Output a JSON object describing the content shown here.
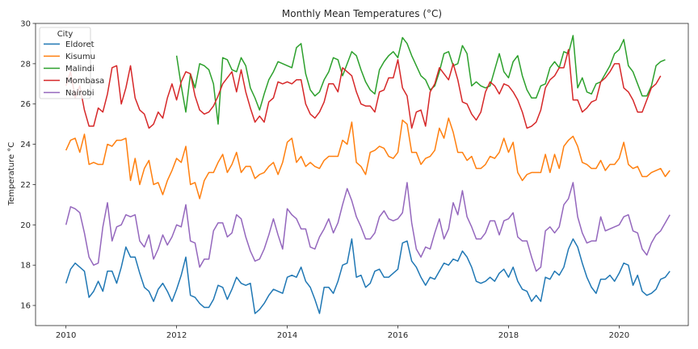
{
  "chart_data": {
    "type": "line",
    "title": "Monthly Mean Temperatures (°C)",
    "xlabel": "",
    "ylabel": "Temperature °C",
    "xlim": [
      2009.45,
      2021.25
    ],
    "ylim": [
      15,
      30
    ],
    "xticks": [
      2010,
      2012,
      2014,
      2016,
      2018,
      2020
    ],
    "yticks": [
      16,
      18,
      20,
      22,
      24,
      26,
      28,
      30
    ],
    "grid": false,
    "legend": {
      "title": "City",
      "placement": "top-left"
    },
    "series": [
      {
        "name": "Eldoret",
        "color": "#1f77b4",
        "x_start": 2010,
        "x_step": 0.0833333,
        "values": [
          17.1,
          17.8,
          18.1,
          17.9,
          17.7,
          16.4,
          16.7,
          17.2,
          16.7,
          17.7,
          17.7,
          17.1,
          17.9,
          18.9,
          18.4,
          18.4,
          17.6,
          16.9,
          16.7,
          16.2,
          16.8,
          17.1,
          16.7,
          16.2,
          16.8,
          17.5,
          18.4,
          16.5,
          16.4,
          16.1,
          15.9,
          15.9,
          16.3,
          17.0,
          16.9,
          16.3,
          16.8,
          17.4,
          17.1,
          17.0,
          17.1,
          15.6,
          15.8,
          16.1,
          16.5,
          16.8,
          16.7,
          16.6,
          17.4,
          17.5,
          17.4,
          17.9,
          17.2,
          16.9,
          16.3,
          15.6,
          16.9,
          16.9,
          16.6,
          17.2,
          18.0,
          18.1,
          19.3,
          17.4,
          17.5,
          16.9,
          17.1,
          17.7,
          17.8,
          17.4,
          17.4,
          17.6,
          17.8,
          19.1,
          19.2,
          18.2,
          17.9,
          17.4,
          17.0,
          17.4,
          17.3,
          17.7,
          18.1,
          18.0,
          18.3,
          18.2,
          18.7,
          18.4,
          17.9,
          17.2,
          17.1,
          17.2,
          17.4,
          17.2,
          17.6,
          17.8,
          17.4,
          17.9,
          17.2,
          16.8,
          16.7,
          16.2,
          16.5,
          16.2,
          17.4,
          17.3,
          17.7,
          17.5,
          17.9,
          18.8,
          19.3,
          18.9,
          18.1,
          17.4,
          16.9,
          16.6,
          17.3,
          17.3,
          17.5,
          17.2,
          17.6,
          18.1,
          18.0,
          17.0,
          17.5,
          16.7,
          16.5,
          16.6,
          16.8,
          17.3,
          17.4,
          17.7
        ]
      },
      {
        "name": "Kisumu",
        "color": "#ff7f0e",
        "x_start": 2010,
        "x_step": 0.0833333,
        "values": [
          23.7,
          24.2,
          24.3,
          23.6,
          24.5,
          23.0,
          23.1,
          23.0,
          23.0,
          24.0,
          23.9,
          24.2,
          24.2,
          24.3,
          22.2,
          23.3,
          22.0,
          22.8,
          23.2,
          22.0,
          22.1,
          21.5,
          22.2,
          22.7,
          23.3,
          23.1,
          23.9,
          22.0,
          22.1,
          21.3,
          22.2,
          22.6,
          22.6,
          23.1,
          23.5,
          22.6,
          23.0,
          23.6,
          22.6,
          22.9,
          22.9,
          22.3,
          22.5,
          22.6,
          22.9,
          23.1,
          22.5,
          23.1,
          24.1,
          24.3,
          23.1,
          23.4,
          22.9,
          23.1,
          22.9,
          22.8,
          23.2,
          23.4,
          23.4,
          23.4,
          24.2,
          24.0,
          25.1,
          23.1,
          22.9,
          22.5,
          23.6,
          23.7,
          23.9,
          23.8,
          23.4,
          23.3,
          23.6,
          25.2,
          25.0,
          23.6,
          23.6,
          23.0,
          23.3,
          23.4,
          23.7,
          24.8,
          24.3,
          25.3,
          24.6,
          23.6,
          23.6,
          23.2,
          23.4,
          22.8,
          22.8,
          23.0,
          23.4,
          23.3,
          23.6,
          24.3,
          23.6,
          24.1,
          22.6,
          22.2,
          22.5,
          22.6,
          22.6,
          22.6,
          23.5,
          22.6,
          23.5,
          22.8,
          23.9,
          24.2,
          24.4,
          23.9,
          23.1,
          23.0,
          22.8,
          22.8,
          23.2,
          22.7,
          23.0,
          23.0,
          23.3,
          24.1,
          23.0,
          22.8,
          22.9,
          22.4,
          22.4,
          22.6,
          22.7,
          22.8,
          22.4,
          22.7
        ]
      },
      {
        "name": "Malindi",
        "color": "#2ca02c",
        "x_start": 2012,
        "x_step": 0.0833333,
        "values": [
          28.4,
          26.9,
          25.6,
          27.5,
          26.8,
          28.0,
          27.9,
          27.7,
          27.0,
          25.0,
          28.3,
          28.2,
          27.7,
          27.6,
          28.3,
          27.9,
          26.8,
          26.3,
          25.7,
          26.5,
          27.2,
          27.6,
          28.1,
          28.0,
          27.9,
          27.8,
          28.8,
          29.0,
          27.5,
          26.7,
          26.4,
          26.6,
          27.2,
          27.6,
          28.3,
          28.2,
          27.4,
          28.0,
          28.6,
          28.4,
          27.7,
          27.1,
          26.7,
          26.5,
          27.7,
          28.1,
          28.4,
          28.6,
          28.3,
          29.3,
          29.0,
          28.4,
          27.9,
          27.4,
          27.2,
          26.7,
          26.9,
          27.6,
          28.5,
          28.6,
          27.9,
          28.0,
          28.9,
          28.5,
          26.9,
          27.1,
          26.9,
          26.8,
          26.9,
          27.7,
          28.5,
          27.6,
          27.3,
          28.1,
          28.4,
          27.4,
          26.7,
          26.3,
          26.3,
          26.9,
          27.0,
          27.8,
          28.1,
          27.8,
          28.6,
          28.5,
          29.4,
          26.8,
          27.3,
          26.6,
          26.5,
          27.0,
          27.1,
          27.5,
          27.9,
          28.5,
          28.7,
          29.2,
          27.9,
          27.6,
          27.0,
          26.4,
          26.4,
          26.9,
          27.9,
          28.1,
          28.2
        ]
      },
      {
        "name": "Mombasa",
        "color": "#d62728",
        "x_start": 2010,
        "x_step": 0.0833333,
        "values": [
          26.9,
          27.6,
          26.3,
          26.9,
          25.7,
          24.9,
          24.9,
          25.8,
          25.6,
          26.5,
          27.8,
          27.9,
          26.0,
          26.8,
          27.9,
          26.3,
          25.7,
          25.5,
          24.8,
          25.0,
          25.6,
          25.3,
          26.3,
          27.0,
          26.2,
          27.1,
          27.6,
          27.5,
          26.4,
          25.7,
          25.5,
          25.6,
          25.9,
          26.4,
          27.0,
          27.3,
          27.6,
          26.6,
          27.7,
          26.6,
          25.8,
          25.1,
          25.4,
          25.1,
          26.1,
          26.3,
          27.1,
          27.0,
          27.1,
          27.0,
          27.2,
          27.2,
          26.0,
          25.5,
          25.3,
          25.6,
          26.1,
          27.0,
          27.0,
          26.6,
          27.8,
          27.6,
          27.4,
          26.6,
          26.0,
          25.9,
          25.9,
          25.6,
          26.6,
          26.7,
          27.3,
          27.3,
          28.2,
          26.8,
          26.4,
          24.8,
          25.6,
          25.7,
          24.9,
          26.6,
          27.0,
          27.8,
          27.5,
          27.2,
          28.0,
          27.2,
          26.1,
          26.0,
          25.5,
          25.2,
          25.6,
          26.6,
          27.1,
          26.9,
          26.5,
          27.0,
          26.9,
          26.6,
          26.2,
          25.6,
          24.8,
          24.9,
          25.1,
          25.7,
          26.8,
          27.2,
          27.4,
          27.8,
          27.8,
          28.7,
          26.2,
          26.2,
          25.6,
          25.8,
          26.1,
          26.2,
          27.1,
          27.3,
          27.6,
          28.0,
          28.0,
          26.8,
          26.6,
          26.2,
          25.6,
          25.6,
          26.2,
          26.8,
          27.0,
          27.4
        ]
      },
      {
        "name": "Nairobi",
        "color": "#9467bd",
        "x_start": 2010,
        "x_step": 0.0833333,
        "values": [
          20.0,
          20.9,
          20.8,
          20.6,
          19.6,
          18.4,
          18.0,
          18.1,
          19.9,
          21.1,
          19.2,
          19.9,
          20.0,
          20.5,
          20.4,
          20.5,
          19.2,
          18.9,
          19.5,
          18.3,
          18.8,
          19.5,
          19.0,
          19.4,
          20.0,
          19.9,
          21.0,
          19.2,
          19.1,
          17.9,
          18.3,
          18.3,
          19.7,
          20.1,
          20.1,
          19.4,
          19.6,
          20.5,
          20.3,
          19.4,
          18.7,
          18.2,
          18.3,
          18.8,
          19.5,
          20.3,
          19.5,
          18.8,
          20.8,
          20.5,
          20.3,
          19.8,
          19.8,
          18.9,
          18.8,
          19.4,
          19.8,
          20.3,
          19.6,
          20.1,
          21.0,
          21.8,
          21.2,
          20.4,
          19.9,
          19.3,
          19.3,
          19.6,
          20.4,
          20.7,
          20.3,
          20.2,
          20.3,
          20.6,
          22.1,
          20.1,
          18.8,
          18.4,
          18.9,
          18.8,
          19.6,
          20.3,
          19.3,
          19.8,
          21.1,
          20.5,
          21.7,
          20.4,
          19.9,
          19.3,
          19.3,
          19.6,
          20.2,
          20.2,
          19.5,
          20.2,
          20.3,
          20.6,
          19.4,
          19.2,
          19.2,
          18.4,
          17.7,
          17.9,
          19.7,
          19.9,
          19.6,
          19.9,
          21.0,
          21.3,
          22.1,
          20.4,
          19.6,
          19.1,
          19.2,
          19.2,
          20.4,
          19.7,
          19.8,
          19.9,
          20.0,
          20.4,
          20.5,
          19.7,
          19.6,
          18.8,
          18.5,
          19.1,
          19.5,
          19.7,
          20.1,
          20.5
        ]
      }
    ]
  }
}
